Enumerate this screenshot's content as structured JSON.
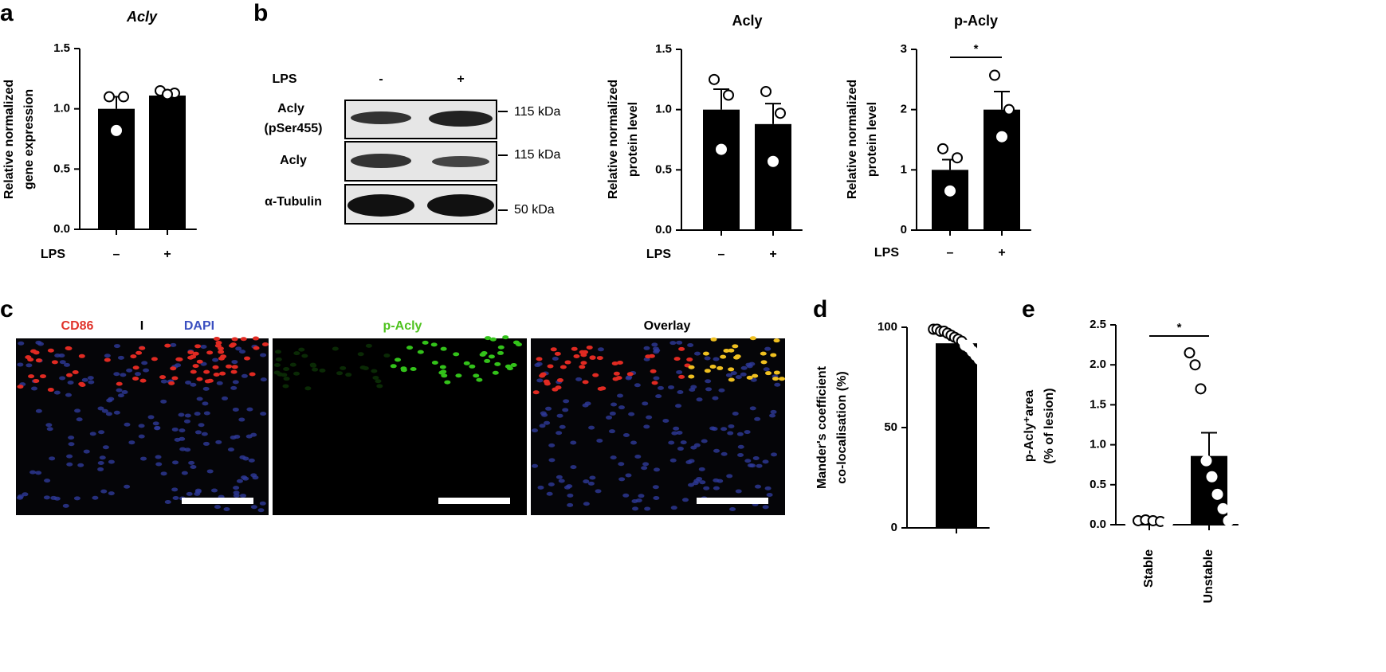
{
  "chart_data": [
    {
      "panel": "a",
      "type": "bar",
      "title": "Acly",
      "ylabel": [
        "Relative normalized",
        "gene expression"
      ],
      "xlabel": "LPS",
      "categories": [
        "–",
        "+"
      ],
      "values": [
        1.0,
        1.11
      ],
      "errors": [
        0.1,
        0.03
      ],
      "points": [
        [
          1.1,
          1.1,
          0.82
        ],
        [
          1.15,
          1.13,
          1.12
        ]
      ],
      "color": "#000000",
      "ylim": [
        0,
        1.5
      ],
      "yticks": [
        {
          "value": 0,
          "label": "0.0"
        },
        0.5,
        {
          "value": 1,
          "label": "1.0"
        },
        1.5
      ]
    },
    {
      "type": "bar",
      "title": "Acly",
      "ylabel": [
        "Relative normalized",
        "protein level"
      ],
      "xlabel": "LPS",
      "categories": [
        "–",
        "+"
      ],
      "values": [
        1.0,
        0.88
      ],
      "errors": [
        0.17,
        0.17
      ],
      "points": [
        [
          1.25,
          1.12,
          0.67
        ],
        [
          1.15,
          0.97,
          0.57
        ]
      ],
      "color": "#000000",
      "ylim": [
        0,
        1.5
      ],
      "yticks": [
        {
          "value": 0,
          "label": "0.0"
        },
        0.5,
        {
          "value": 1,
          "label": "1.0"
        },
        1.5
      ]
    },
    {
      "type": "bar",
      "title": "p-Acly",
      "ylabel": [
        "Relative normalized",
        "protein level"
      ],
      "xlabel": "LPS",
      "categories": [
        "–",
        "+"
      ],
      "values": [
        1.0,
        2.0
      ],
      "errors": [
        0.17,
        0.3
      ],
      "points": [
        [
          1.35,
          1.2,
          0.65
        ],
        [
          2.57,
          2.0,
          1.55
        ]
      ],
      "color": "#000000",
      "ylim": [
        0,
        3
      ],
      "yticks": [
        0,
        1,
        2,
        3
      ],
      "significance": "*"
    },
    {
      "panel": "d",
      "type": "bar",
      "ylabel": [
        "Mander's coefficient",
        "co-localisation (%)"
      ],
      "categories": [
        null
      ],
      "values": [
        92
      ],
      "errors": [
        1.6
      ],
      "points": [
        [
          99,
          99,
          98,
          98,
          97,
          96,
          95,
          94,
          93,
          91,
          90,
          88,
          86,
          84
        ]
      ],
      "color": "#000000",
      "ylim": [
        0,
        100
      ],
      "yticks": [
        0,
        50,
        100
      ]
    },
    {
      "panel": "e",
      "type": "bar",
      "ylabel": [
        "p-Acly⁺area",
        "(% of lesion)"
      ],
      "categories": [
        "Stable",
        "Unstable"
      ],
      "values": [
        0.04,
        0.86
      ],
      "errors": [
        0.01,
        0.29
      ],
      "points": [
        [
          0.02,
          0.05,
          0.06,
          0.05,
          0.04,
          0.03
        ],
        [
          2.15,
          2.0,
          1.7,
          0.8,
          0.6,
          0.38,
          0.2,
          0.05
        ]
      ],
      "color": "#000000",
      "ylim": [
        0,
        2.5
      ],
      "yticks": [
        {
          "value": 0,
          "label": "0.0"
        },
        0.5,
        {
          "value": 1,
          "label": "1.0"
        },
        1.5,
        {
          "value": 2,
          "label": "2.0"
        },
        2.5
      ],
      "significance": "*"
    }
  ],
  "blot": {
    "panel": "b",
    "treatment": "LPS",
    "lanes": [
      "-",
      "+"
    ],
    "rows": [
      {
        "label": [
          "Acly",
          "(pSer455)"
        ],
        "size": "115 kDa"
      },
      {
        "label": [
          "Acly"
        ],
        "size": "115 kDa"
      },
      {
        "label": [
          "α-Tubulin"
        ],
        "size": "50 kDa"
      }
    ]
  },
  "micrographs": {
    "panel": "c",
    "images": [
      {
        "labels": [
          "CD86",
          "I",
          "DAPI"
        ]
      },
      {
        "labels": [
          "p-Acly"
        ]
      },
      {
        "labels": [
          "Overlay"
        ]
      }
    ]
  }
}
